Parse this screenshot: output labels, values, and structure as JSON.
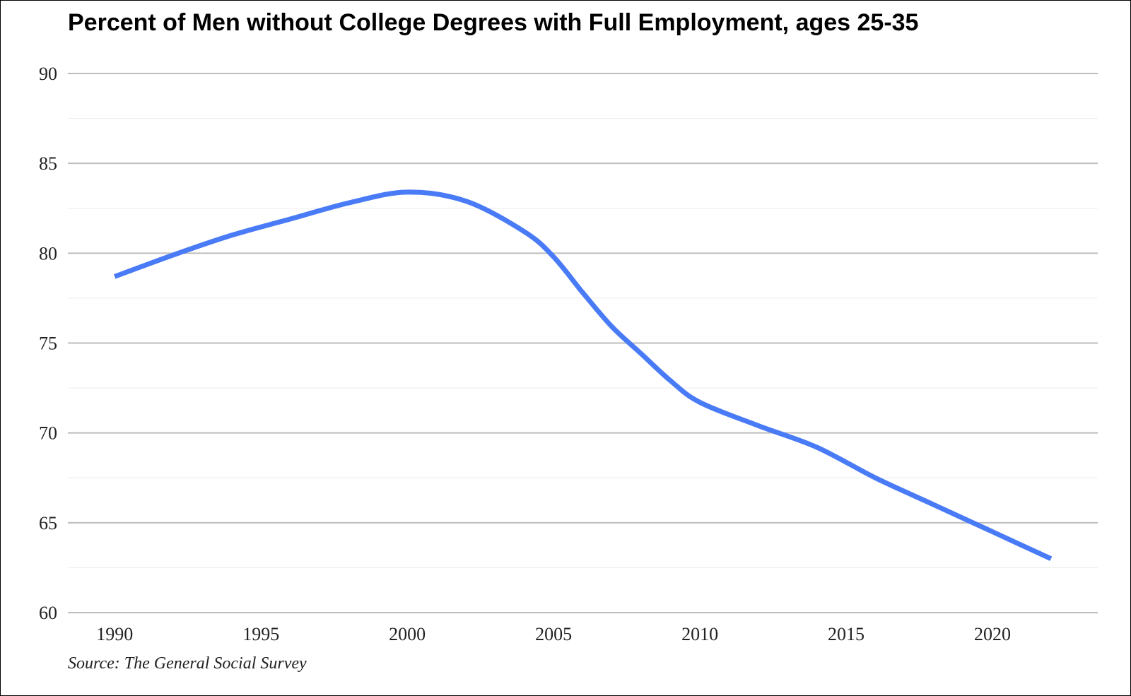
{
  "chart_data": {
    "type": "line",
    "title": "Percent of Men without College Degrees with Full Employment, ages 25-35",
    "source": "Source: The General Social Survey",
    "xlabel": "",
    "ylabel": "",
    "xlim": [
      1988.4,
      2023.6
    ],
    "ylim": [
      60,
      90
    ],
    "x_ticks": [
      1990,
      1995,
      2000,
      2005,
      2010,
      2015,
      2020
    ],
    "y_ticks": [
      60,
      65,
      70,
      75,
      80,
      85,
      90
    ],
    "grid": true,
    "legend": "none",
    "line_color": "#4a7bf7",
    "series": [
      {
        "x": [
          1990,
          1992,
          1994,
          1996,
          1998,
          2000,
          2002,
          2004,
          2005,
          2006,
          2007,
          2008,
          2009,
          2010,
          2012,
          2014,
          2016,
          2018,
          2020,
          2022
        ],
        "y": [
          78.7,
          79.9,
          81.0,
          81.9,
          82.8,
          83.4,
          82.9,
          81.2,
          79.8,
          77.8,
          75.9,
          74.4,
          72.9,
          71.7,
          70.4,
          69.2,
          67.5,
          66.0,
          64.5,
          63.0
        ]
      }
    ]
  }
}
